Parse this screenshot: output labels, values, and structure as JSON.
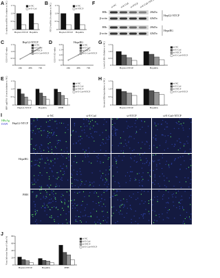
{
  "charts": [
    {
      "letter": "A",
      "type": "bar",
      "ylabel": "E-cadherin mRNA (% relative to NC)",
      "categories": [
        "HepG2-NTCP",
        "HepaRG"
      ],
      "series": [
        {
          "name": "si-NC",
          "color": "#111111",
          "values": [
            1,
            1
          ]
        },
        {
          "name": "si-E-Cad",
          "color": "#ffffff",
          "values": [
            0.3,
            0.35
          ]
        }
      ],
      "ylim": [
        0,
        1.5
      ],
      "yticks": [
        0,
        0.5,
        {
          "value": 1,
          "label": "1.0"
        },
        1.5
      ]
    },
    {
      "letter": "B",
      "type": "bar",
      "ylabel": "NTCP mRNA (% relative to NC)",
      "categories": [
        "HepG2-NTCP",
        "HepaRG"
      ],
      "series": [
        {
          "name": "si-NC",
          "color": "#111111",
          "values": [
            1,
            1
          ]
        },
        {
          "name": "si-NTCP",
          "color": "#ffffff",
          "values": [
            0.3,
            0.3
          ]
        }
      ],
      "ylim": [
        0,
        1.5
      ],
      "yticks": [
        0,
        0.5,
        {
          "value": 1,
          "label": "1.0"
        },
        1.5
      ]
    },
    {
      "letter": "C",
      "type": "line",
      "title": "HepG2-NTCP",
      "ylabel": "CCK-8 OD value",
      "categories": [
        "24h",
        "48h",
        "72h"
      ],
      "series": [
        {
          "name": "si-NC",
          "color": "#111111",
          "values": [
            0.45,
            0.85,
            1.3
          ]
        },
        {
          "name": "si-E-Cad",
          "color": "#444444",
          "values": [
            0.44,
            0.84,
            1.28
          ]
        },
        {
          "name": "si-NTCP",
          "color": "#777777",
          "values": [
            0.45,
            0.86,
            1.3
          ]
        },
        {
          "name": "si-E-Cad+NTCP",
          "color": "#aaaaaa",
          "values": [
            0.44,
            0.85,
            1.29
          ]
        }
      ],
      "ylim": [
        0,
        1.5
      ],
      "yticks": [
        0,
        0.5,
        {
          "value": 1,
          "label": "1.0"
        },
        1.5
      ]
    },
    {
      "letter": "D",
      "type": "line",
      "title": "HepaRG",
      "ylabel": "CCK-8 OD value",
      "categories": [
        "24h",
        "48h",
        "72h"
      ],
      "series": [
        {
          "name": "si-NC",
          "color": "#111111",
          "values": [
            0.5,
            1,
            1.6
          ]
        },
        {
          "name": "si-E-Cad",
          "color": "#444444",
          "values": [
            0.49,
            0.98,
            1.58
          ]
        },
        {
          "name": "si-NTCP",
          "color": "#777777",
          "values": [
            0.5,
            1.01,
            1.6
          ]
        },
        {
          "name": "si-E-Cad+NTCP",
          "color": "#aaaaaa",
          "values": [
            0.5,
            0.99,
            1.59
          ]
        }
      ],
      "ylim": [
        0,
        2
      ],
      "yticks": [
        0,
        0.5,
        {
          "value": 1,
          "label": "1.0"
        },
        1.5,
        {
          "value": 2,
          "label": "2.0"
        }
      ]
    },
    {
      "letter": "G",
      "type": "bar",
      "ylabel": "Level of HBc (Relative to NC)",
      "categories": [
        "HepG2-NTCP",
        "HepaRG"
      ],
      "series": [
        {
          "name": "si-NC",
          "color": "#111111",
          "values": [
            1,
            1
          ]
        },
        {
          "name": "si-E-Cad",
          "color": "#555555",
          "values": [
            0.75,
            0.8
          ]
        },
        {
          "name": "si-NTCP",
          "color": "#999999",
          "values": [
            0.55,
            0.6
          ]
        },
        {
          "name": "si-E-Cad+NTCP",
          "color": "#ffffff",
          "values": [
            0.35,
            0.4
          ]
        }
      ],
      "ylim": [
        0,
        1.5
      ],
      "yticks": [
        0,
        0.5,
        {
          "value": 1,
          "label": "1.0"
        },
        1.5
      ]
    },
    {
      "letter": "E",
      "type": "bar",
      "ylabel": "HBV pgRNA / β-actin (relative to NC)",
      "categories": [
        "HepG2-NTCP",
        "HepaRG",
        "PHH"
      ],
      "series": [
        {
          "name": "si-NC",
          "color": "#111111",
          "values": [
            1,
            1,
            1
          ]
        },
        {
          "name": "si-E-Cad",
          "color": "#555555",
          "values": [
            0.7,
            0.75,
            0.8
          ]
        },
        {
          "name": "si-NTCP",
          "color": "#999999",
          "values": [
            0.5,
            0.55,
            0.6
          ]
        },
        {
          "name": "si-E-Cad+NTCP",
          "color": "#ffffff",
          "values": [
            0.3,
            0.35,
            0.4
          ]
        }
      ],
      "ylim": [
        0,
        1.5
      ],
      "yticks": [
        0,
        0.5,
        {
          "value": 1,
          "label": "1.0"
        },
        1.5
      ]
    },
    {
      "letter": "H",
      "type": "bar",
      "ylabel": "Secreted HBsAg (relative to NC)",
      "categories": [
        "HepG2-NTCP",
        "HepaRG"
      ],
      "series": [
        {
          "name": "si-NC",
          "color": "#111111",
          "values": [
            1,
            1
          ]
        },
        {
          "name": "si-E-Cad",
          "color": "#555555",
          "values": [
            0.85,
            0.9
          ]
        },
        {
          "name": "si-NTCP",
          "color": "#999999",
          "values": [
            0.75,
            0.8
          ]
        },
        {
          "name": "si-E-Cad+NTCP",
          "color": "#ffffff",
          "values": [
            0.6,
            0.65
          ]
        }
      ],
      "ylim": [
        0,
        1.5
      ],
      "yticks": [
        0,
        0.5,
        {
          "value": 1,
          "label": "1.0"
        },
        1.5
      ]
    },
    {
      "letter": "J",
      "type": "bar",
      "ylabel": "Virus Infection Rate of Cells (%)",
      "categories": [
        "HepG2-NTCP",
        "HepaRG",
        "PHH"
      ],
      "series": [
        {
          "name": "si-NC",
          "color": "#111111",
          "values": [
            22,
            18,
            55
          ]
        },
        {
          "name": "si-E-Cad",
          "color": "#555555",
          "values": [
            15,
            13,
            35
          ]
        },
        {
          "name": "si-NTCP",
          "color": "#999999",
          "values": [
            12,
            11,
            28
          ]
        },
        {
          "name": "si-E-Cad+NTCP",
          "color": "#ffffff",
          "values": [
            7,
            7,
            15
          ]
        }
      ],
      "ylim": [
        0,
        80
      ],
      "yticks": [
        0,
        20,
        40,
        60,
        80
      ]
    }
  ],
  "blot": {
    "letter": "F",
    "lanes": [
      "si-NC",
      "si-E-Cad",
      "si-NTCP",
      "si-E-Cad+NTCP"
    ],
    "rows": [
      {
        "label": "HBc",
        "size": "20kDa"
      },
      {
        "label": "β-actin",
        "size": "42kDa"
      },
      {
        "label": "HBc",
        "size": "20kDa"
      },
      {
        "label": "β-actin",
        "size": "42kDa"
      }
    ],
    "groups": [
      "HepG2-NTCP",
      "HepaRG"
    ]
  },
  "images": {
    "letter": "I",
    "stains": [
      "HBsAg",
      "DAPI"
    ],
    "columns": [
      "si-NC",
      "si-E-Cad",
      "si-NTCP",
      "si-E-Cad+NTCP"
    ],
    "rows": [
      "HepG2-NTCP",
      "HepaRG",
      "PHH"
    ]
  }
}
